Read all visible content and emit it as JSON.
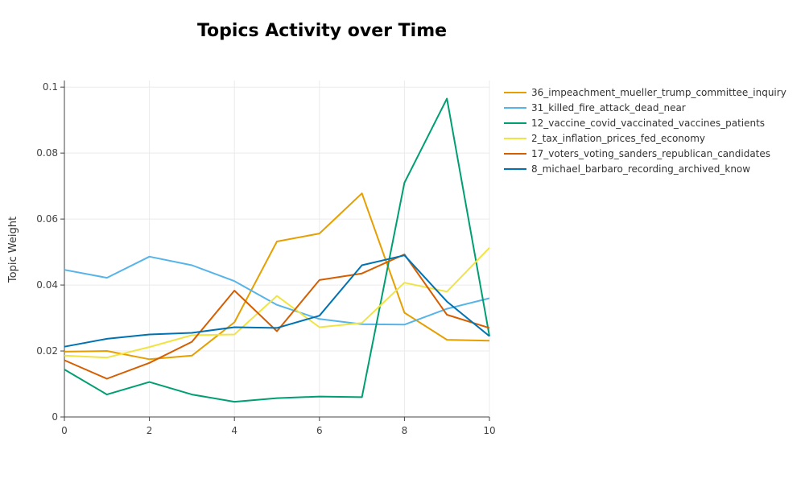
{
  "chart_data": {
    "type": "line",
    "title": "Topics Activity over Time",
    "xlabel": "",
    "ylabel": "Topic Weight",
    "xlim": [
      0,
      10
    ],
    "ylim": [
      0,
      0.102
    ],
    "x_ticks": [
      0,
      2,
      4,
      6,
      8,
      10
    ],
    "y_ticks": [
      0,
      0.02,
      0.04,
      0.06,
      0.08,
      0.1
    ],
    "y_tick_labels": [
      "0",
      "0.02",
      "0.04",
      "0.06",
      "0.08",
      "0.1"
    ],
    "grid": true,
    "legend_position": "top-right",
    "x": [
      0,
      1,
      2,
      3,
      4,
      5,
      6,
      7,
      8,
      9,
      10
    ],
    "series": [
      {
        "name": "36_impeachment_mueller_trump_committee_inquiry",
        "color": "#E69F00",
        "values": [
          0.0198,
          0.02,
          0.0175,
          0.0186,
          0.0287,
          0.0532,
          0.0556,
          0.0678,
          0.0316,
          0.0234,
          0.0231
        ]
      },
      {
        "name": "31_killed_fire_attack_dead_near",
        "color": "#56B4E9",
        "values": [
          0.0446,
          0.0422,
          0.0486,
          0.046,
          0.0412,
          0.034,
          0.0297,
          0.0281,
          0.028,
          0.0328,
          0.036
        ]
      },
      {
        "name": "12_vaccine_covid_vaccinated_vaccines_patients",
        "color": "#009E73",
        "values": [
          0.0144,
          0.0068,
          0.0106,
          0.0068,
          0.0046,
          0.0057,
          0.0062,
          0.006,
          0.071,
          0.0965,
          0.0245
        ]
      },
      {
        "name": "2_tax_inflation_prices_fed_economy",
        "color": "#F0E442",
        "values": [
          0.0186,
          0.018,
          0.0212,
          0.0248,
          0.025,
          0.0367,
          0.0272,
          0.0285,
          0.0407,
          0.038,
          0.0513
        ]
      },
      {
        "name": "17_voters_voting_sanders_republican_candidates",
        "color": "#D55E00",
        "values": [
          0.0172,
          0.0116,
          0.0164,
          0.0228,
          0.0383,
          0.026,
          0.0415,
          0.0435,
          0.0493,
          0.031,
          0.027
        ]
      },
      {
        "name": "8_michael_barbaro_recording_archived_know",
        "color": "#0072B2",
        "values": [
          0.0213,
          0.0237,
          0.025,
          0.0255,
          0.0272,
          0.027,
          0.0307,
          0.046,
          0.049,
          0.035,
          0.0245
        ]
      }
    ]
  }
}
